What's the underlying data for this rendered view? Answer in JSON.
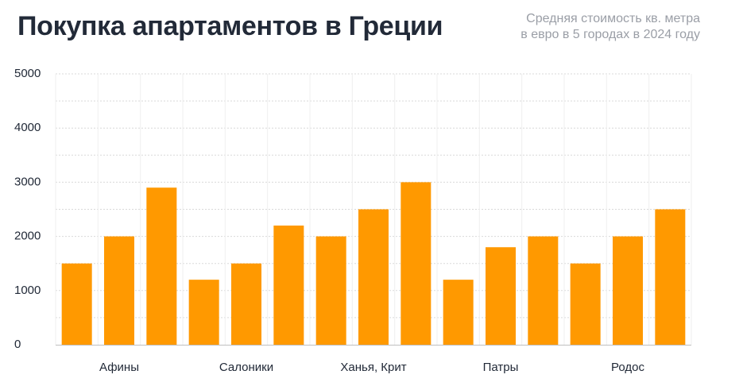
{
  "header": {
    "title": "Покупка апартаментов в Греции",
    "subtitle_line1": "Средняя стоимость кв. метра",
    "subtitle_line2": "в евро в 5 городах в 2024 году"
  },
  "colors": {
    "bar": "#ff9900",
    "grid": "#d9d9d9",
    "axis": "#bfbfbf",
    "text": "#222a38"
  },
  "chart_data": {
    "type": "bar",
    "categories": [
      "Афины",
      "Салоники",
      "Ханья, Крит",
      "Патры",
      "Родос"
    ],
    "bars_per_category": 3,
    "series_values": [
      [
        1500,
        2000,
        2900
      ],
      [
        1200,
        1500,
        2200
      ],
      [
        2000,
        2500,
        3000
      ],
      [
        1200,
        1800,
        2000
      ],
      [
        1500,
        2000,
        2500
      ]
    ],
    "title": "Покупка апартаментов в Греции",
    "subtitle": "Средняя стоимость кв. метра в евро в 5 городах в 2024 году",
    "xlabel": "",
    "ylabel": "",
    "ylim": [
      0,
      5000
    ],
    "yticks": [
      {
        "value": 0,
        "label": "0"
      },
      {
        "value": 1000,
        "label": "1000"
      },
      {
        "value": 2000,
        "label": "2000"
      },
      {
        "value": 3000,
        "label": "3000"
      },
      {
        "value": 4000,
        "label": "4000"
      },
      {
        "value": 5000,
        "label": "5000"
      }
    ],
    "grid": true,
    "legend": "none"
  }
}
